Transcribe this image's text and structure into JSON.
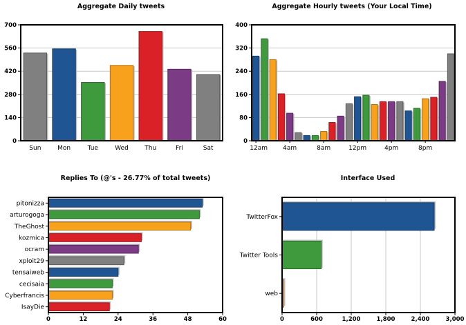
{
  "colors": {
    "gray": "#7f807f",
    "blue": "#1f5592",
    "green": "#3e9a3c",
    "orange": "#f7a11d",
    "red": "#da2128",
    "purple": "#7c3b85",
    "tan": "#d8a060",
    "grid": "#c8c8c8"
  },
  "chart_data": [
    {
      "type": "bar",
      "title": "Aggregate Daily tweets",
      "categories": [
        "Sun",
        "Mon",
        "Tue",
        "Wed",
        "Thu",
        "Fri",
        "Sat"
      ],
      "values": [
        530,
        555,
        352,
        455,
        660,
        432,
        400
      ],
      "bar_colors": [
        "gray",
        "blue",
        "green",
        "orange",
        "red",
        "purple",
        "gray"
      ],
      "ylim": [
        0,
        700
      ],
      "yticks": [
        0,
        140,
        280,
        420,
        560,
        700
      ],
      "grid": true
    },
    {
      "type": "bar",
      "title": "Aggregate Hourly tweets (Your Local Time)",
      "values": [
        292,
        352,
        280,
        162,
        95,
        28,
        18,
        18,
        32,
        63,
        85,
        128,
        152,
        157,
        125,
        135,
        135,
        135,
        103,
        112,
        145,
        150,
        205,
        300
      ],
      "bar_colors": [
        "blue",
        "green",
        "orange",
        "red",
        "purple",
        "gray",
        "blue",
        "green",
        "orange",
        "red",
        "purple",
        "gray",
        "blue",
        "green",
        "orange",
        "red",
        "purple",
        "gray",
        "blue",
        "green",
        "orange",
        "red",
        "purple",
        "gray"
      ],
      "xtick_labels": [
        {
          "index": 0,
          "label": "12am"
        },
        {
          "index": 4,
          "label": "4am"
        },
        {
          "index": 8,
          "label": "8am"
        },
        {
          "index": 12,
          "label": "12pm"
        },
        {
          "index": 16,
          "label": "4pm"
        },
        {
          "index": 20,
          "label": "8pm"
        }
      ],
      "ylim": [
        0,
        400
      ],
      "yticks": [
        0,
        80,
        160,
        240,
        320,
        400
      ],
      "grid": true
    },
    {
      "type": "bar",
      "orientation": "horizontal",
      "title": "Replies To (@'s - 26.77% of total tweets)",
      "categories": [
        "pitonizza",
        "arturogoga",
        "TheGhost",
        "kozmica",
        "ocram",
        "xploit29",
        "tensaiweb",
        "cecisaia",
        "Cyberfrancis",
        "IsayDie"
      ],
      "values": [
        53,
        52,
        49,
        32,
        31,
        26,
        24,
        22,
        22,
        21
      ],
      "bar_colors": [
        "blue",
        "green",
        "orange",
        "red",
        "purple",
        "gray",
        "blue",
        "green",
        "orange",
        "red"
      ],
      "xlim": [
        0,
        60
      ],
      "xticks": [
        0,
        12,
        24,
        36,
        48,
        60
      ],
      "grid": false
    },
    {
      "type": "bar",
      "orientation": "horizontal",
      "title": "Interface Used",
      "categories": [
        "TwitterFox",
        "Twitter Tools",
        "web"
      ],
      "values": [
        2640,
        680,
        30
      ],
      "bar_colors": [
        "blue",
        "green",
        "tan"
      ],
      "xlim": [
        0,
        3000
      ],
      "xticks": [
        0,
        600,
        1200,
        1800,
        2400,
        3000
      ],
      "xtick_labels": [
        "0",
        "600",
        "1,200",
        "1,800",
        "2,400",
        "3,000"
      ],
      "grid": true
    }
  ]
}
